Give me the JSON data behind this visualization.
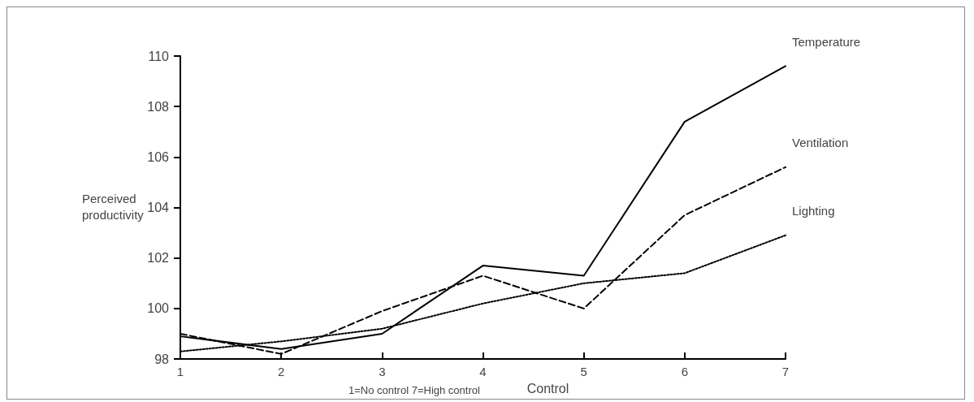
{
  "chart_data": {
    "type": "line",
    "xlabel": "Control",
    "ylabel": "Perceived productivity",
    "annotations": [
      "1=No control 7=High control"
    ],
    "x": [
      1,
      2,
      3,
      4,
      5,
      6,
      7
    ],
    "xlim": [
      1,
      7
    ],
    "xticks": [
      1,
      2,
      3,
      4,
      5,
      6,
      7
    ],
    "ylim": [
      98,
      110
    ],
    "yticks": [
      98,
      100,
      102,
      104,
      106,
      108,
      110
    ],
    "grid": false,
    "legend": false,
    "marker": "none",
    "series": [
      {
        "name": "Temperature",
        "color": "#000000",
        "line_style": "solid",
        "values": [
          98.9,
          98.4,
          99.0,
          101.7,
          101.3,
          107.4,
          109.6
        ]
      },
      {
        "name": "Ventilation",
        "color": "#000000",
        "line_style": "dashed",
        "values": [
          99.0,
          98.2,
          99.9,
          101.3,
          100.0,
          103.7,
          105.6
        ]
      },
      {
        "name": "Lighting",
        "color": "#000000",
        "line_style": "dotted",
        "values": [
          98.3,
          98.7,
          99.2,
          100.2,
          101.0,
          101.4,
          102.9
        ]
      }
    ]
  }
}
